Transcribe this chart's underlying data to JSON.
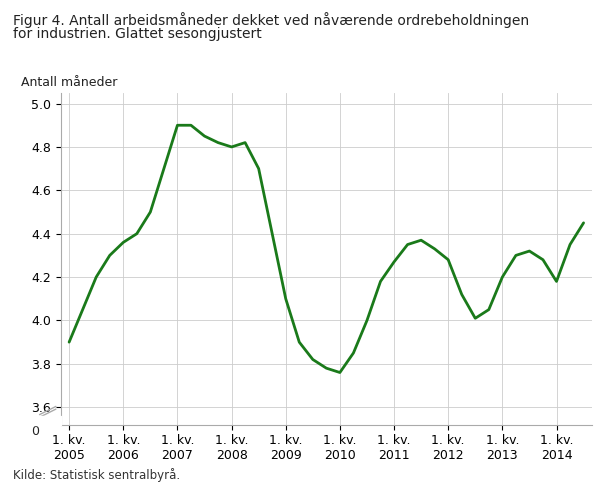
{
  "title_line1": "Figur 4. Antall arbeidsmåneder dekket ved nåværende ordrebeholdningen",
  "title_line2": "for industrien. Glattet sesongjustert",
  "ylabel": "Antall måneder",
  "source": "Kilde: Statistisk sentralbyrå.",
  "line_color": "#1a7a1a",
  "background_color": "#ffffff",
  "grid_color": "#cccccc",
  "x_values": [
    2005.0,
    2005.25,
    2005.5,
    2005.75,
    2006.0,
    2006.25,
    2006.5,
    2006.75,
    2007.0,
    2007.25,
    2007.5,
    2007.75,
    2008.0,
    2008.25,
    2008.5,
    2008.75,
    2009.0,
    2009.25,
    2009.5,
    2009.75,
    2010.0,
    2010.25,
    2010.5,
    2010.75,
    2011.0,
    2011.25,
    2011.5,
    2011.75,
    2012.0,
    2012.25,
    2012.5,
    2012.75,
    2013.0,
    2013.25,
    2013.5,
    2013.75,
    2014.0,
    2014.25,
    2014.5
  ],
  "y_values": [
    3.9,
    4.05,
    4.2,
    4.3,
    4.36,
    4.4,
    4.5,
    4.7,
    4.9,
    4.9,
    4.85,
    4.82,
    4.8,
    4.82,
    4.7,
    4.4,
    4.1,
    3.9,
    3.82,
    3.78,
    3.76,
    3.85,
    4.0,
    4.18,
    4.27,
    4.35,
    4.37,
    4.33,
    4.28,
    4.12,
    4.01,
    4.05,
    4.2,
    4.3,
    4.32,
    4.28,
    4.18,
    4.35,
    4.45
  ],
  "xtick_positions": [
    2005.0,
    2006.0,
    2007.0,
    2008.0,
    2009.0,
    2010.0,
    2011.0,
    2012.0,
    2013.0,
    2014.0
  ],
  "xtick_labels": [
    "1. kv.\n2005",
    "1. kv.\n2006",
    "1. kv.\n2007",
    "1. kv.\n2008",
    "1. kv.\n2009",
    "1. kv.\n2010",
    "1. kv.\n2011",
    "1. kv.\n2012",
    "1. kv.\n2013",
    "1. kv.\n2014"
  ],
  "yticks": [
    3.6,
    3.8,
    4.0,
    4.2,
    4.4,
    4.6,
    4.8,
    5.0
  ],
  "ylim": [
    3.52,
    5.05
  ],
  "xlim": [
    2004.85,
    2014.65
  ]
}
